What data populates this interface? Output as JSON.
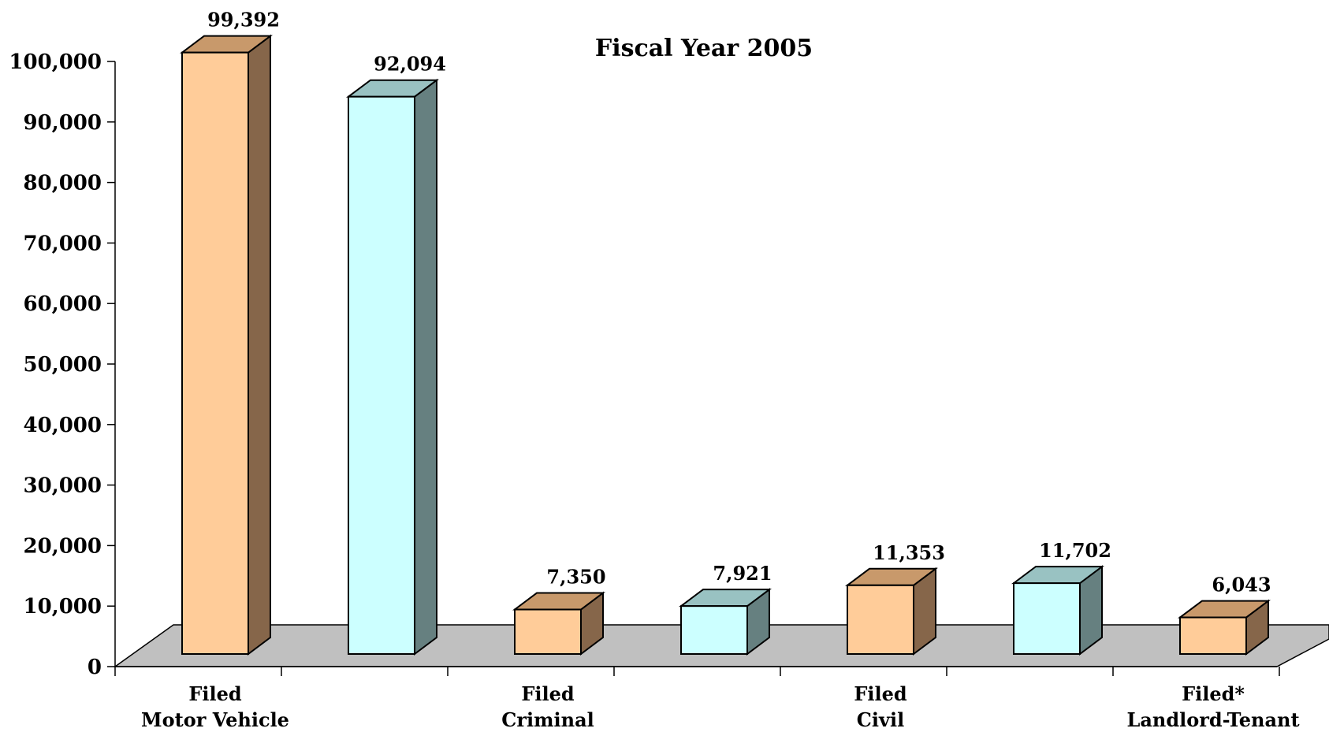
{
  "chart_data": {
    "type": "bar",
    "title": "Fiscal Year 2005",
    "xlabel": "",
    "ylabel": "",
    "ylim": [
      0,
      100000
    ],
    "grid": false,
    "y_ticks": [
      "0",
      "10,000",
      "20,000",
      "30,000",
      "40,000",
      "50,000",
      "60,000",
      "70,000",
      "80,000",
      "90,000",
      "100,000"
    ],
    "categories": [
      {
        "line1": "Filed",
        "line2": "Motor Vehicle"
      },
      {
        "line1": "Filed",
        "line2": "Criminal"
      },
      {
        "line1": "Filed",
        "line2": "Civil"
      },
      {
        "line1": "Filed*",
        "line2": "Landlord-Tenant"
      }
    ],
    "bars": [
      {
        "value": 99392,
        "label": "99,392",
        "color": "#FFCC99"
      },
      {
        "value": 92094,
        "label": "92,094",
        "color": "#CCFFFF"
      },
      {
        "value": 7350,
        "label": "7,350",
        "color": "#FFCC99"
      },
      {
        "value": 7921,
        "label": "7,921",
        "color": "#CCFFFF"
      },
      {
        "value": 11353,
        "label": "11,353",
        "color": "#FFCC99"
      },
      {
        "value": 11702,
        "label": "11,702",
        "color": "#CCFFFF"
      },
      {
        "value": 6043,
        "label": "6,043",
        "color": "#FFCC99"
      }
    ],
    "colors": {
      "orange_front": "#FFCC99",
      "orange_top": "#C8996B",
      "orange_side": "#86664A",
      "cyan_front": "#CCFFFF",
      "cyan_top": "#99C2C2",
      "cyan_side": "#668080",
      "floor": "#C0C0C0"
    }
  }
}
